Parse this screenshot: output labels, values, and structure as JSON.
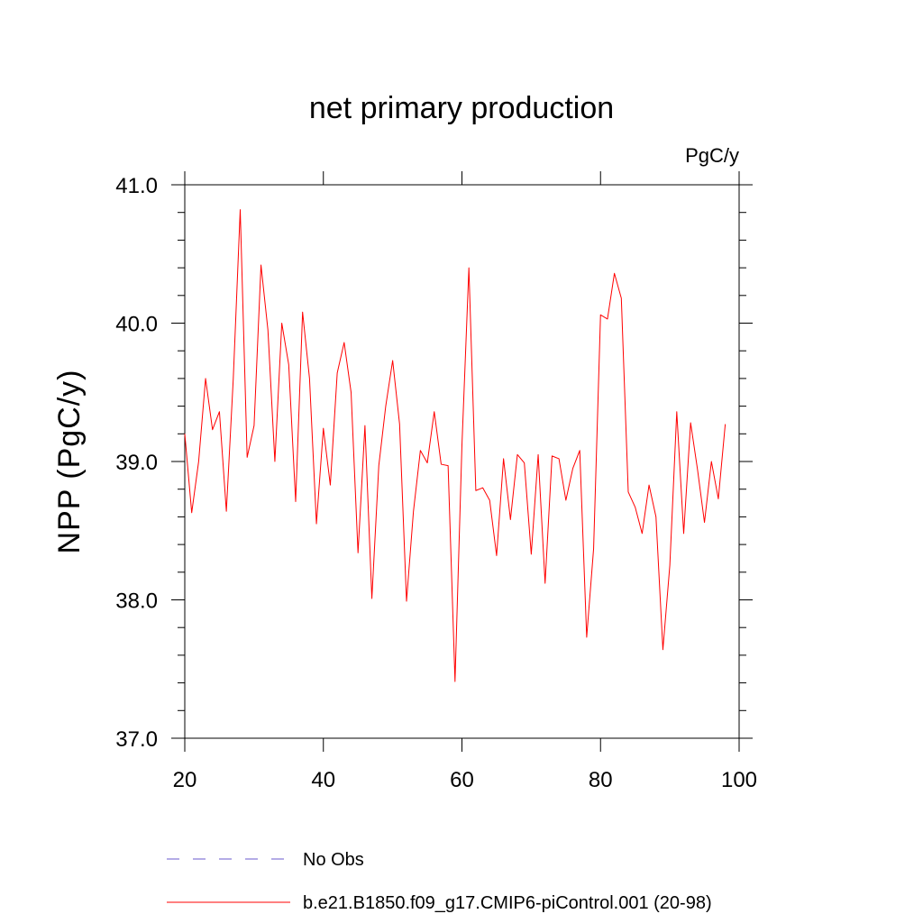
{
  "chart_data": {
    "type": "line",
    "title": "net primary production",
    "units": "PgC/y",
    "xlabel": "",
    "ylabel": "NPP  (PgC/y)",
    "xlim": [
      20,
      100
    ],
    "ylim": [
      37.0,
      41.0
    ],
    "x_ticks": [
      20,
      40,
      60,
      80,
      100
    ],
    "x_tick_labels": [
      "20",
      "40",
      "60",
      "80",
      "100"
    ],
    "y_ticks": [
      37.0,
      38.0,
      39.0,
      40.0,
      41.0
    ],
    "y_tick_labels": [
      "37.0",
      "38.0",
      "39.0",
      "40.0",
      "41.0"
    ],
    "legend_position": "bottom-left",
    "legend": [
      {
        "label": "No Obs",
        "color": "#6a5acd",
        "style": "dashed"
      },
      {
        "label": "b.e21.B1850.f09_g17.CMIP6-piControl.001 (20-98)",
        "color": "#ff0000",
        "style": "solid"
      }
    ],
    "series": [
      {
        "name": "b.e21.B1850.f09_g17.CMIP6-piControl.001 (20-98)",
        "color": "#ff0000",
        "x": [
          20,
          21,
          22,
          23,
          24,
          25,
          26,
          27,
          28,
          29,
          30,
          31,
          32,
          33,
          34,
          35,
          36,
          37,
          38,
          39,
          40,
          41,
          42,
          43,
          44,
          45,
          46,
          47,
          48,
          49,
          50,
          51,
          52,
          53,
          54,
          55,
          56,
          57,
          58,
          59,
          60,
          61,
          62,
          63,
          64,
          65,
          66,
          67,
          68,
          69,
          70,
          71,
          72,
          73,
          74,
          75,
          76,
          77,
          78,
          79,
          80,
          81,
          82,
          83,
          84,
          85,
          86,
          87,
          88,
          89,
          90,
          91,
          92,
          93,
          94,
          95,
          96,
          97,
          98
        ],
        "values": [
          39.2,
          38.63,
          39.0,
          39.6,
          39.23,
          39.36,
          38.64,
          39.6,
          40.82,
          39.03,
          39.26,
          40.42,
          39.95,
          39.0,
          40.0,
          39.7,
          38.71,
          40.08,
          39.6,
          38.55,
          39.24,
          38.83,
          39.64,
          39.86,
          39.5,
          38.34,
          39.26,
          38.01,
          38.97,
          39.4,
          39.73,
          39.27,
          37.99,
          38.64,
          39.08,
          38.99,
          39.36,
          38.98,
          38.97,
          37.41,
          39.12,
          40.4,
          38.79,
          38.81,
          38.72,
          38.32,
          39.02,
          38.58,
          39.05,
          38.99,
          38.33,
          39.05,
          38.12,
          39.04,
          39.02,
          38.72,
          38.95,
          39.08,
          37.73,
          38.37,
          40.06,
          40.03,
          40.36,
          40.18,
          38.78,
          38.67,
          38.48,
          38.83,
          38.6,
          37.64,
          38.25,
          39.36,
          38.48,
          39.28,
          38.94,
          38.56,
          39.0,
          38.73,
          39.27
        ]
      }
    ]
  }
}
